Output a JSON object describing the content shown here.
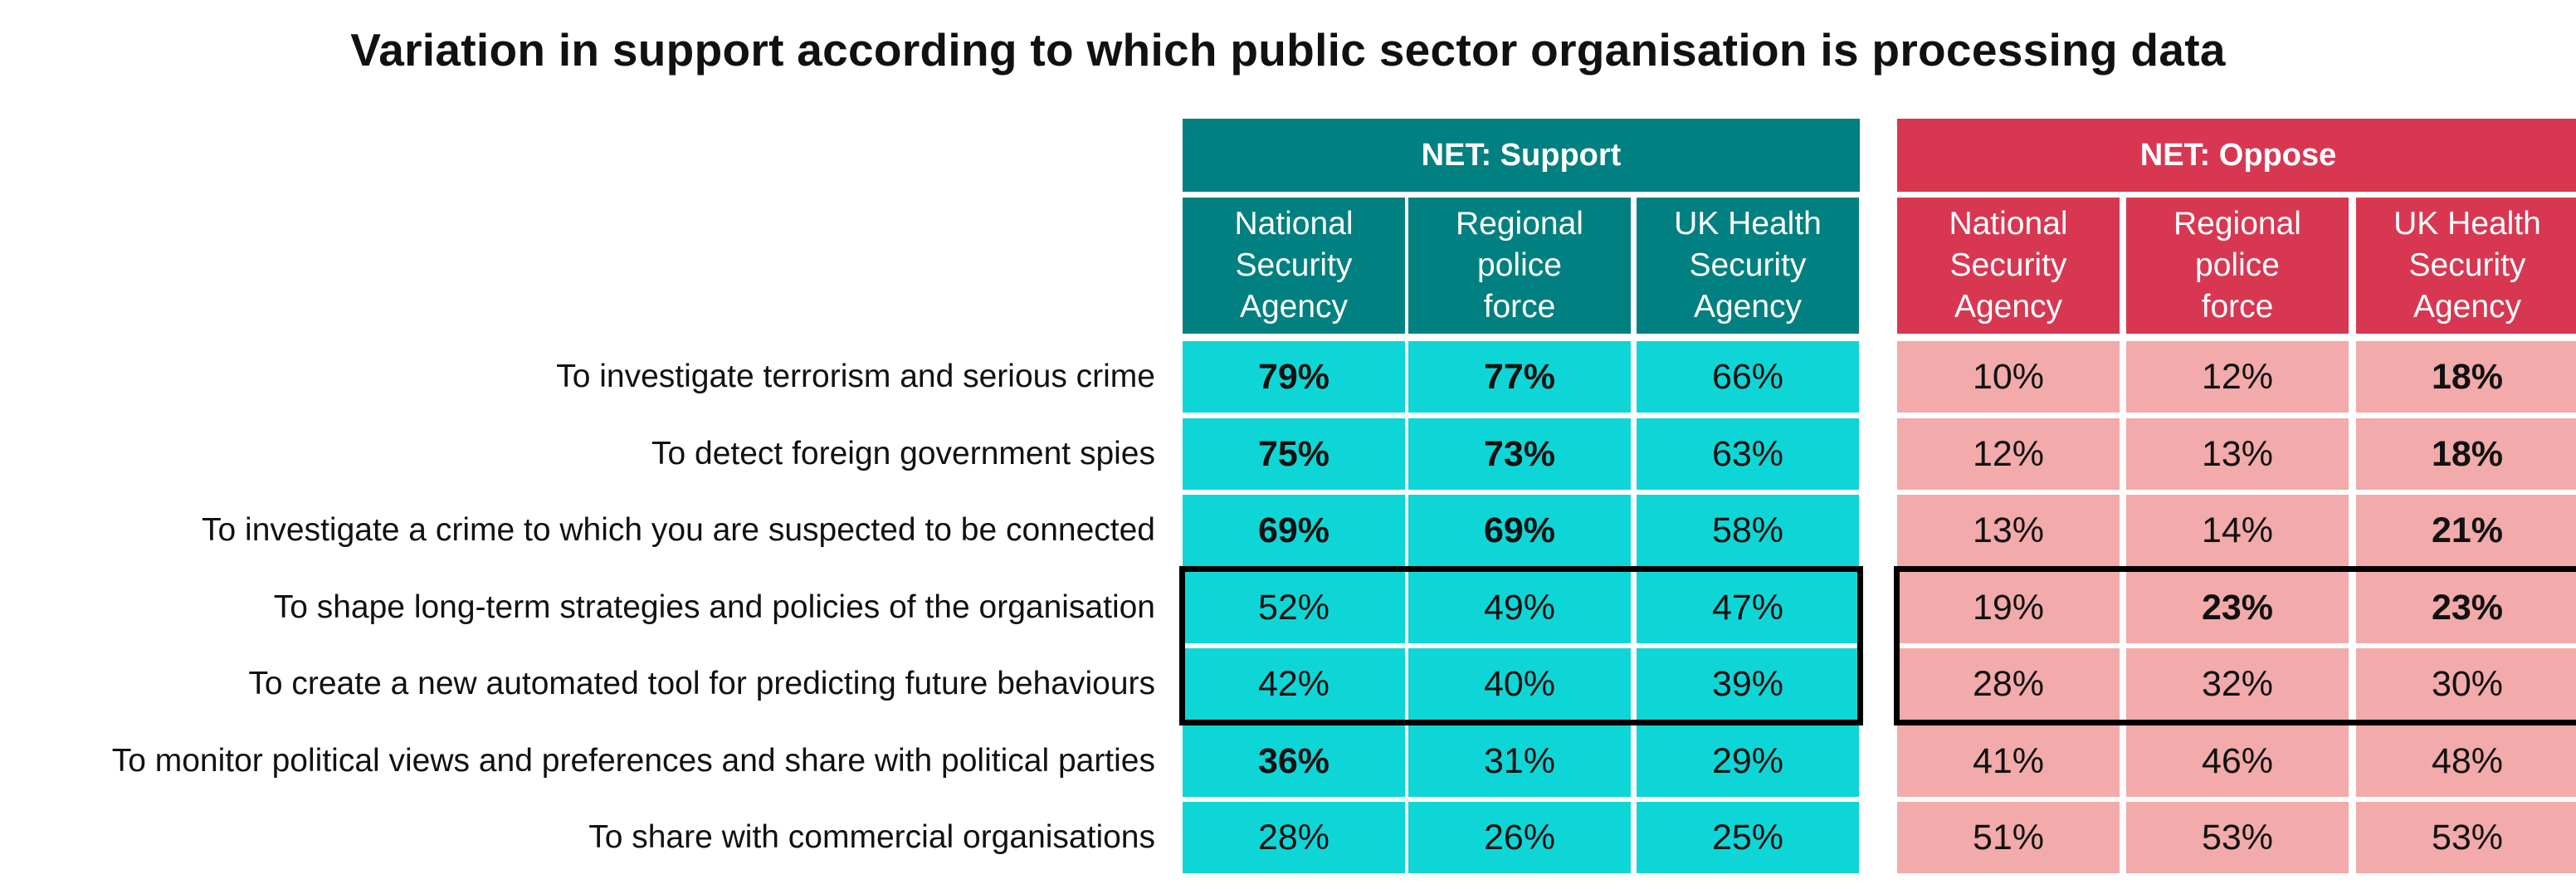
{
  "colors": {
    "support_header": "#008080",
    "support_cell": "#0fd6d6",
    "oppose_header": "#d83752",
    "oppose_cell": "#f2aaaa",
    "highlight_border": "#000000"
  },
  "chart_data": {
    "type": "table",
    "title": "Variation in support according to which public sector organisation is processing data",
    "groups": [
      {
        "name": "NET: Support",
        "columns": [
          "National\nSecurity\nAgency",
          "Regional\npolice\nforce",
          "UK Health\nSecurity\nAgency"
        ]
      },
      {
        "name": "NET: Oppose",
        "columns": [
          "National\nSecurity\nAgency",
          "Regional\npolice\nforce",
          "UK Health\nSecurity\nAgency"
        ]
      }
    ],
    "rows": [
      {
        "label": "To investigate terrorism and serious crime",
        "support": [
          "79%",
          "77%",
          "66%"
        ],
        "support_bold": [
          true,
          true,
          false
        ],
        "oppose": [
          "10%",
          "12%",
          "18%"
        ],
        "oppose_bold": [
          false,
          false,
          true
        ]
      },
      {
        "label": "To detect foreign government spies",
        "support": [
          "75%",
          "73%",
          "63%"
        ],
        "support_bold": [
          true,
          true,
          false
        ],
        "oppose": [
          "12%",
          "13%",
          "18%"
        ],
        "oppose_bold": [
          false,
          false,
          true
        ]
      },
      {
        "label": "To investigate a crime to which you are suspected to be connected",
        "support": [
          "69%",
          "69%",
          "58%"
        ],
        "support_bold": [
          true,
          true,
          false
        ],
        "oppose": [
          "13%",
          "14%",
          "21%"
        ],
        "oppose_bold": [
          false,
          false,
          true
        ]
      },
      {
        "label": "To shape long-term strategies and policies of the organisation",
        "support": [
          "52%",
          "49%",
          "47%"
        ],
        "support_bold": [
          false,
          false,
          false
        ],
        "oppose": [
          "19%",
          "23%",
          "23%"
        ],
        "oppose_bold": [
          false,
          true,
          true
        ]
      },
      {
        "label": "To create a new automated tool for predicting future behaviours",
        "support": [
          "42%",
          "40%",
          "39%"
        ],
        "support_bold": [
          false,
          false,
          false
        ],
        "oppose": [
          "28%",
          "32%",
          "30%"
        ],
        "oppose_bold": [
          false,
          false,
          false
        ]
      },
      {
        "label": "To monitor political views and preferences and share with political parties",
        "support": [
          "36%",
          "31%",
          "29%"
        ],
        "support_bold": [
          true,
          false,
          false
        ],
        "oppose": [
          "41%",
          "46%",
          "48%"
        ],
        "oppose_bold": [
          false,
          false,
          false
        ]
      },
      {
        "label": "To share with commercial organisations",
        "support": [
          "28%",
          "26%",
          "25%"
        ],
        "support_bold": [
          false,
          false,
          false
        ],
        "oppose": [
          "51%",
          "53%",
          "53%"
        ],
        "oppose_bold": [
          false,
          false,
          false
        ]
      }
    ],
    "highlighted_rows": [
      3,
      4
    ]
  }
}
